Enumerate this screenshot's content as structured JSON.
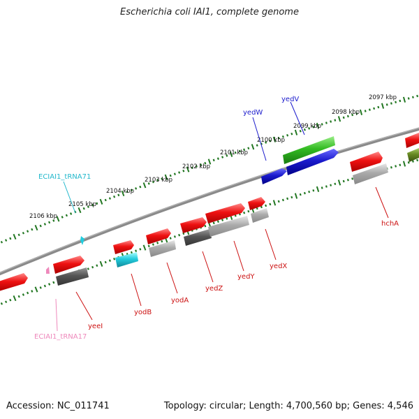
{
  "title": "Escherichia coli IAI1, complete genome",
  "footer": {
    "accession": "Accession: NC_011741",
    "summary": "Topology: circular; Length: 4,700,560 bp; Genes: 4,546"
  },
  "kbp_labels": [
    "2106 kbp",
    "2105 kbp",
    "2104 kbp",
    "2103 kbp",
    "2102 kbp",
    "2101 kbp",
    "2100 kbp",
    "2099 kbp",
    "2098 kbp",
    "2097 kbp"
  ],
  "gene_labels": {
    "trna71": "ECIAI1_tRNA71",
    "yedW": "yedW",
    "yedV": "yedV",
    "hchA": "hchA",
    "yeeI": "yeeI",
    "trna17": "ECIAI1_tRNA17",
    "yodB": "yodB",
    "yodA": "yodA",
    "yedZ": "yedZ",
    "yedY": "yedY",
    "yedX": "yedX"
  },
  "colors": {
    "red": "#ee1111",
    "blue": "#1a1acc",
    "green": "#33bb22",
    "olive": "#668822",
    "cyan": "#22ccdd",
    "darkgray": "#555555",
    "lightgray": "#aaaaaa",
    "pink": "#ee88bb",
    "tick": "#227722",
    "backbone": "#777777"
  }
}
